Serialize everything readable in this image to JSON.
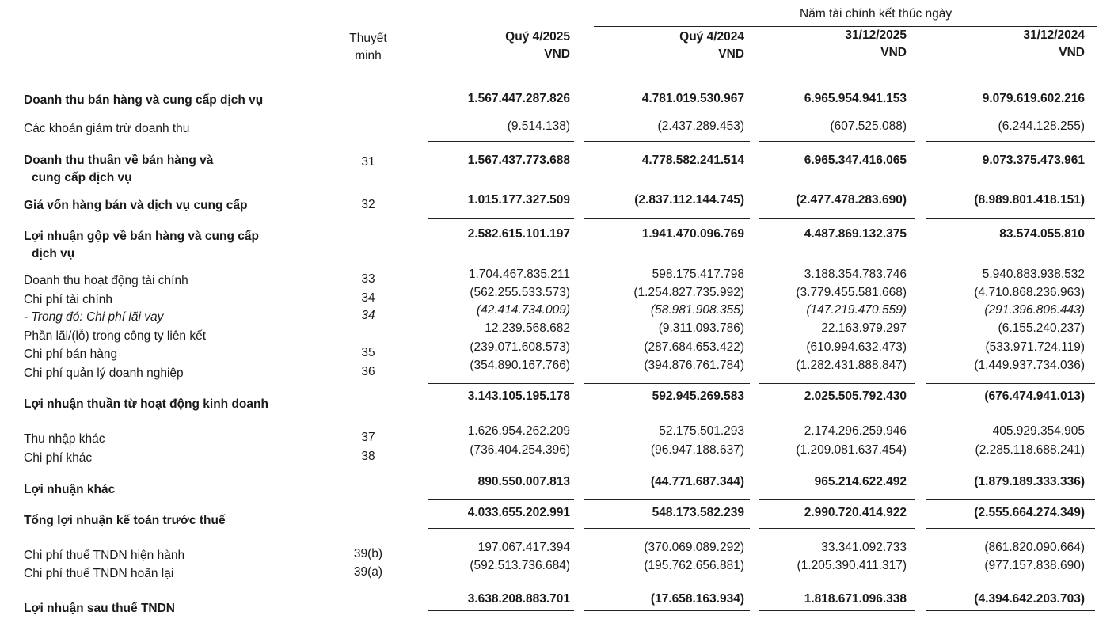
{
  "header": {
    "fiscal_year_group": "Năm tài chính kết thúc ngày",
    "note_header": [
      "Thuyết",
      "minh"
    ],
    "columns": [
      {
        "period": "Quý 4/2025",
        "unit": "VND"
      },
      {
        "period": "Quý 4/2024",
        "unit": "VND"
      },
      {
        "period": "31/12/2025",
        "unit": "VND"
      },
      {
        "period": "31/12/2024",
        "unit": "VND"
      }
    ]
  },
  "rows": [
    {
      "label": [
        "Doanh thu bán hàng và cung cấp dịch vụ"
      ],
      "note": "",
      "style": "bold",
      "values": [
        "1.567.447.287.826",
        "4.781.019.530.967",
        "6.965.954.941.153",
        "9.079.619.602.216"
      ]
    },
    {
      "label": [
        "Các khoản giảm trừ doanh thu"
      ],
      "note": "",
      "style": "normal",
      "values": [
        "(9.514.138)",
        "(2.437.289.453)",
        "(607.525.088)",
        "(6.244.128.255)"
      ]
    },
    {
      "label": [
        "Doanh thu thuần về bán hàng và",
        "cung cấp dịch vụ"
      ],
      "note": "31",
      "style": "bold",
      "values": [
        "1.567.437.773.688",
        "4.778.582.241.514",
        "6.965.347.416.065",
        "9.073.375.473.961"
      ]
    },
    {
      "label": [
        "Giá vốn hàng bán và dịch vụ cung cấp"
      ],
      "note": "32",
      "style": "bold",
      "values": [
        "1.015.177.327.509",
        "(2.837.112.144.745)",
        "(2.477.478.283.690)",
        "(8.989.801.418.151)"
      ]
    },
    {
      "label": [
        "Lợi nhuận gộp về bán hàng và cung cấp",
        "dịch vụ"
      ],
      "note": "",
      "style": "bold",
      "values": [
        "2.582.615.101.197",
        "1.941.470.096.769",
        "4.487.869.132.375",
        "83.574.055.810"
      ]
    },
    {
      "label": [
        "Doanh thu hoạt động tài chính"
      ],
      "note": "33",
      "style": "normal",
      "values": [
        "1.704.467.835.211",
        "598.175.417.798",
        "3.188.354.783.746",
        "5.940.883.938.532"
      ]
    },
    {
      "label": [
        "Chi phí tài chính"
      ],
      "note": "34",
      "style": "normal",
      "values": [
        "(562.255.533.573)",
        "(1.254.827.735.992)",
        "(3.779.455.581.668)",
        "(4.710.868.236.963)"
      ]
    },
    {
      "label": [
        "- Trong đó: Chi phí lãi vay"
      ],
      "note": "34",
      "style": "italic",
      "values": [
        "(42.414.734.009)",
        "(58.981.908.355)",
        "(147.219.470.559)",
        "(291.396.806.443)"
      ]
    },
    {
      "label": [
        "Phần lãi/(lỗ) trong công ty liên kết"
      ],
      "note": "",
      "style": "normal",
      "values": [
        "12.239.568.682",
        "(9.311.093.786)",
        "22.163.979.297",
        "(6.155.240.237)"
      ]
    },
    {
      "label": [
        "Chi phí bán hàng"
      ],
      "note": "35",
      "style": "normal",
      "values": [
        "(239.071.608.573)",
        "(287.684.653.422)",
        "(610.994.632.473)",
        "(533.971.724.119)"
      ]
    },
    {
      "label": [
        "Chi phí quản lý doanh nghiệp"
      ],
      "note": "36",
      "style": "normal",
      "values": [
        "(354.890.167.766)",
        "(394.876.761.784)",
        "(1.282.431.888.847)",
        "(1.449.937.734.036)"
      ]
    },
    {
      "label": [
        "Lợi nhuận thuần từ hoạt động kinh doanh"
      ],
      "note": "",
      "style": "bold",
      "values": [
        "3.143.105.195.178",
        "592.945.269.583",
        "2.025.505.792.430",
        "(676.474.941.013)"
      ]
    },
    {
      "label": [
        "Thu nhập khác"
      ],
      "note": "37",
      "style": "normal",
      "values": [
        "1.626.954.262.209",
        "52.175.501.293",
        "2.174.296.259.946",
        "405.929.354.905"
      ]
    },
    {
      "label": [
        "Chi phí khác"
      ],
      "note": "38",
      "style": "normal",
      "values": [
        "(736.404.254.396)",
        "(96.947.188.637)",
        "(1.209.081.637.454)",
        "(2.285.118.688.241)"
      ]
    },
    {
      "label": [
        "Lợi nhuận khác"
      ],
      "note": "",
      "style": "bold",
      "values": [
        "890.550.007.813",
        "(44.771.687.344)",
        "965.214.622.492",
        "(1.879.189.333.336)"
      ]
    },
    {
      "label": [
        "Tổng lợi nhuận kế toán trước thuế"
      ],
      "note": "",
      "style": "bold",
      "values": [
        "4.033.655.202.991",
        "548.173.582.239",
        "2.990.720.414.922",
        "(2.555.664.274.349)"
      ]
    },
    {
      "label": [
        "Chi phí thuế TNDN hiện hành"
      ],
      "note": "39(b)",
      "style": "normal",
      "values": [
        "197.067.417.394",
        "(370.069.089.292)",
        "33.341.092.733",
        "(861.820.090.664)"
      ]
    },
    {
      "label": [
        "Chi phí thuế TNDN hoãn lại"
      ],
      "note": "39(a)",
      "style": "normal",
      "values": [
        "(592.513.736.684)",
        "(195.762.656.881)",
        "(1.205.390.411.317)",
        "(977.157.838.690)"
      ]
    },
    {
      "label": [
        "Lợi nhuận sau thuế TNDN"
      ],
      "note": "",
      "style": "bold",
      "values": [
        "3.638.208.883.701",
        "(17.658.163.934)",
        "1.818.671.096.338",
        "(4.394.642.203.703)"
      ]
    }
  ]
}
